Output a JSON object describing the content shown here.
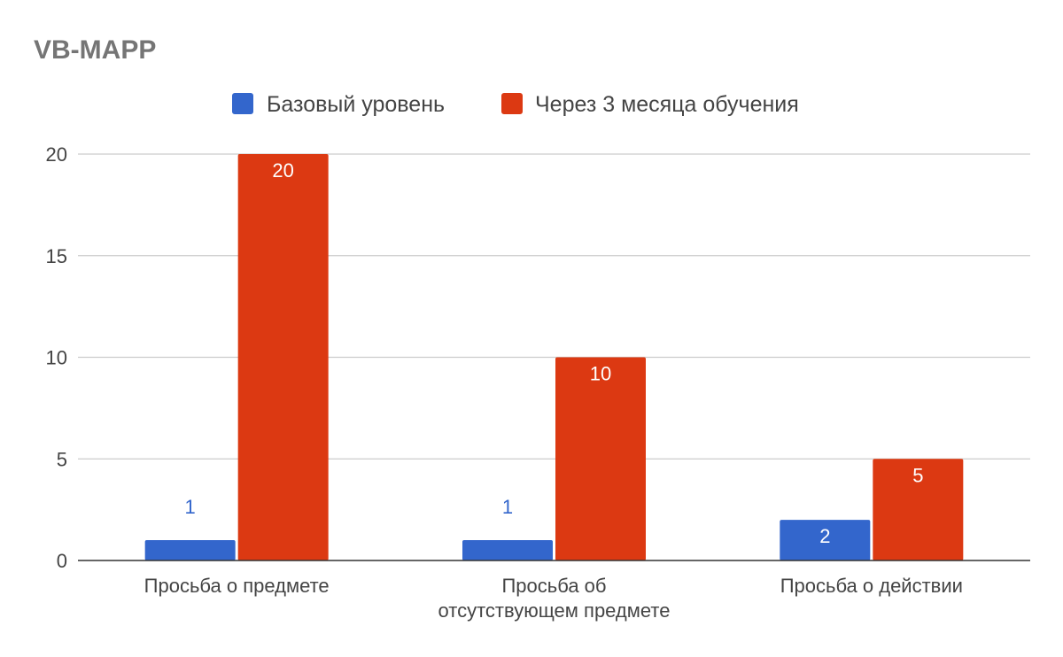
{
  "chart_data": {
    "type": "bar",
    "title": "VB-MAPP",
    "categories": [
      [
        "Просьба о предмете"
      ],
      [
        "Просьба об",
        "отсутствующем предмете"
      ],
      [
        "Просьба о действии"
      ]
    ],
    "series": [
      {
        "name": "Базовый уровень",
        "color": "#3366cc",
        "values": [
          1,
          1,
          2
        ]
      },
      {
        "name": "Через 3 месяца обучения",
        "color": "#dc3912",
        "values": [
          20,
          10,
          5
        ]
      }
    ],
    "yticks": [
      0,
      5,
      10,
      15,
      20
    ],
    "ylim": [
      0,
      20
    ],
    "xlabel": "",
    "ylabel": "",
    "legend": "top-center",
    "grid": true
  }
}
